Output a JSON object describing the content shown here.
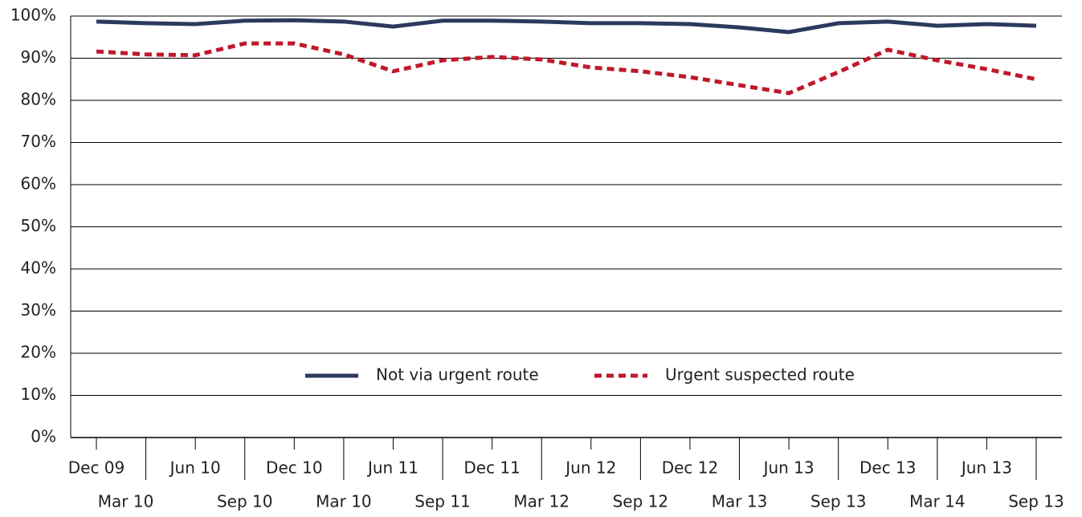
{
  "chart_data": {
    "type": "line",
    "categories": [
      "Dec 09",
      "Mar 10",
      "Jun 10",
      "Sep 10",
      "Dec 10",
      "Mar 10",
      "Jun 11",
      "Sep 11",
      "Dec 11",
      "Mar 12",
      "Jun 12",
      "Sep 12",
      "Dec 12",
      "Mar 13",
      "Jun 13",
      "Sep 13",
      "Dec 13",
      "Mar 14",
      "Jun 13",
      "Sep 13"
    ],
    "series": [
      {
        "name": "Not via urgent route",
        "color": "#2b3a5e",
        "dashed": false,
        "values": [
          98.7,
          98.3,
          98.1,
          98.9,
          99.0,
          98.7,
          97.5,
          98.9,
          98.9,
          98.7,
          98.3,
          98.3,
          98.1,
          97.3,
          96.2,
          98.3,
          98.7,
          97.7,
          98.1,
          97.7
        ]
      },
      {
        "name": "Urgent suspected route",
        "color": "#c0182b",
        "dashed": true,
        "values": [
          91.6,
          90.9,
          90.7,
          93.5,
          93.5,
          90.9,
          86.9,
          89.5,
          90.3,
          89.7,
          87.8,
          86.9,
          85.5,
          83.6,
          81.7,
          86.7,
          92.0,
          89.5,
          87.4,
          85.0
        ]
      }
    ],
    "ylim": [
      0,
      100
    ],
    "yticks": [
      {
        "value": 0,
        "label": "0%"
      },
      {
        "value": 10,
        "label": "10%"
      },
      {
        "value": 20,
        "label": "20%"
      },
      {
        "value": 30,
        "label": "30%"
      },
      {
        "value": 40,
        "label": "40%"
      },
      {
        "value": 50,
        "label": "50%"
      },
      {
        "value": 60,
        "label": "60%"
      },
      {
        "value": 70,
        "label": "70%"
      },
      {
        "value": 80,
        "label": "80%"
      },
      {
        "value": 90,
        "label": "90%"
      },
      {
        "value": 100,
        "label": "100%"
      }
    ],
    "grid": true,
    "legend": "lower center"
  }
}
